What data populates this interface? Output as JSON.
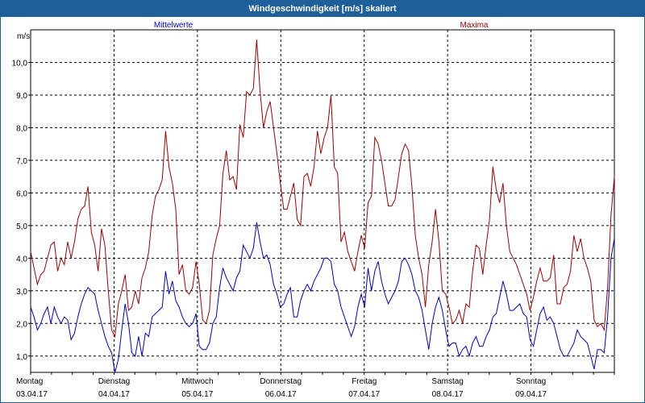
{
  "window": {
    "title": "Windgeschwindigkeit [m/s] skaliert"
  },
  "chart_data": {
    "type": "line",
    "ylabel": "m/s",
    "ylim": [
      0.5,
      11.0
    ],
    "yticks": [
      "1,0",
      "2,0",
      "3,0",
      "4,0",
      "5,0",
      "6,0",
      "7,0",
      "8,0",
      "9,0",
      "10,0"
    ],
    "x_start": "03.04.17 00:00",
    "x_end": "10.04.17 00:00",
    "x_step_hours": 1,
    "grid": true,
    "day_labels": [
      {
        "day": "Montag",
        "date": "03.04.17"
      },
      {
        "day": "Dienstag",
        "date": "04.04.17"
      },
      {
        "day": "Mittwoch",
        "date": "05.04.17"
      },
      {
        "day": "Donnerstag",
        "date": "06.04.17"
      },
      {
        "day": "Freitag",
        "date": "07.04.17"
      },
      {
        "day": "Samstag",
        "date": "08.04.17"
      },
      {
        "day": "Sonntag",
        "date": "09.04.17"
      }
    ],
    "series": [
      {
        "name": "Mittelwerte",
        "color": "#0000c0",
        "values": [
          2.5,
          2.2,
          1.8,
          2.0,
          2.3,
          2.5,
          2.0,
          2.5,
          2.2,
          2.0,
          2.2,
          2.1,
          1.5,
          1.7,
          2.2,
          2.6,
          2.9,
          3.1,
          3.0,
          2.9,
          2.4,
          2.0,
          1.6,
          1.3,
          1.1,
          0.5,
          0.9,
          1.8,
          2.6,
          2.0,
          1.1,
          1.0,
          1.6,
          1.0,
          1.7,
          1.6,
          2.2,
          2.3,
          2.4,
          2.5,
          3.6,
          2.9,
          3.3,
          2.7,
          2.5,
          2.2,
          2.0,
          1.9,
          2.0,
          2.3,
          1.3,
          1.2,
          1.2,
          1.4,
          2.0,
          2.2,
          3.1,
          3.7,
          3.4,
          3.2,
          3.0,
          3.4,
          3.6,
          4.4,
          4.2,
          4.0,
          4.3,
          5.1,
          4.5,
          4.0,
          4.1,
          3.8,
          3.2,
          2.9,
          2.5,
          2.6,
          2.9,
          3.1,
          2.2,
          2.2,
          2.7,
          3.0,
          3.2,
          3.0,
          3.3,
          3.5,
          3.7,
          4.0,
          4.0,
          3.9,
          3.2,
          3.0,
          2.5,
          2.2,
          1.9,
          1.6,
          1.9,
          2.5,
          2.9,
          2.5,
          3.7,
          3.0,
          3.6,
          3.9,
          3.3,
          2.9,
          2.6,
          2.8,
          3.0,
          3.3,
          3.9,
          4.0,
          3.8,
          3.5,
          3.0,
          2.8,
          2.4,
          1.8,
          1.2,
          2.0,
          2.5,
          2.8,
          2.4,
          1.8,
          1.3,
          1.4,
          1.4,
          1.0,
          1.2,
          1.3,
          1.0,
          1.4,
          1.6,
          1.3,
          1.3,
          1.6,
          1.8,
          2.2,
          2.3,
          2.8,
          3.3,
          2.9,
          2.4,
          2.4,
          2.5,
          2.6,
          2.3,
          2.2,
          1.5,
          1.3,
          1.8,
          2.3,
          2.5,
          2.1,
          2.2,
          2.0,
          1.6,
          1.2,
          1.0,
          1.0,
          1.2,
          1.4,
          1.8,
          1.6,
          1.5,
          1.4,
          1.0,
          0.6,
          1.2,
          1.2,
          1.1,
          2.2,
          4.0,
          4.6
        ]
      },
      {
        "name": "Maxima",
        "color": "#a00000",
        "values": [
          4.2,
          3.7,
          3.2,
          3.5,
          3.6,
          4.0,
          4.4,
          4.5,
          3.6,
          4.0,
          3.8,
          4.5,
          4.0,
          4.5,
          5.2,
          5.5,
          5.6,
          6.2,
          4.8,
          4.4,
          3.6,
          4.9,
          4.4,
          3.0,
          1.8,
          1.6,
          2.6,
          3.0,
          3.5,
          2.4,
          2.5,
          3.0,
          2.6,
          3.4,
          3.7,
          4.2,
          5.3,
          5.9,
          6.1,
          6.4,
          7.9,
          6.8,
          6.3,
          5.5,
          3.5,
          3.8,
          3.0,
          2.9,
          3.1,
          3.9,
          3.2,
          2.1,
          2.0,
          2.4,
          4.1,
          4.6,
          5.0,
          6.6,
          7.3,
          6.4,
          6.5,
          6.1,
          8.1,
          7.7,
          9.1,
          9.0,
          9.2,
          10.7,
          9.1,
          8.0,
          8.5,
          8.8,
          8.0,
          7.2,
          6.3,
          5.5,
          5.5,
          5.9,
          6.3,
          5.2,
          5.0,
          6.5,
          6.6,
          6.2,
          6.8,
          7.9,
          7.2,
          7.7,
          8.0,
          9.0,
          6.8,
          6.6,
          4.5,
          4.8,
          4.2,
          3.9,
          3.6,
          4.2,
          4.7,
          4.3,
          5.7,
          5.9,
          7.7,
          7.5,
          7.0,
          6.3,
          5.6,
          5.6,
          5.8,
          6.5,
          7.2,
          7.5,
          7.3,
          6.2,
          4.7,
          4.0,
          3.5,
          2.5,
          3.8,
          4.5,
          5.5,
          4.5,
          3.0,
          2.9,
          2.5,
          2.0,
          2.1,
          2.4,
          2.0,
          2.6,
          2.5,
          3.6,
          4.4,
          4.3,
          3.5,
          4.4,
          5.2,
          6.8,
          6.1,
          5.7,
          6.3,
          5.0,
          4.2,
          4.0,
          3.8,
          3.5,
          3.2,
          2.9,
          2.4,
          2.8,
          3.3,
          3.7,
          3.3,
          3.3,
          3.4,
          4.1,
          2.6,
          2.6,
          3.1,
          3.2,
          3.6,
          4.7,
          4.2,
          4.6,
          4.0,
          3.7,
          3.3,
          2.1,
          1.9,
          2.0,
          1.8,
          3.1,
          5.3,
          6.5
        ]
      }
    ]
  }
}
